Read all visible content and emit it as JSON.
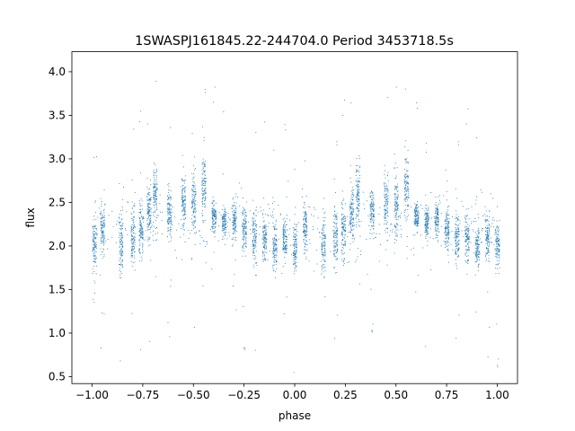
{
  "chart_data": {
    "type": "scatter",
    "title": "1SWASPJ161845.22-244704.0 Period 3453718.5s",
    "xlabel": "phase",
    "ylabel": "flux",
    "xlim": [
      -1.1,
      1.1
    ],
    "ylim": [
      0.42,
      4.23
    ],
    "xticks": [
      -1.0,
      -0.75,
      -0.5,
      -0.25,
      0.0,
      0.25,
      0.5,
      0.75,
      1.0
    ],
    "xtick_labels": [
      "−1.00",
      "−0.75",
      "−0.50",
      "−0.25",
      "0.00",
      "0.25",
      "0.50",
      "0.75",
      "1.00"
    ],
    "yticks": [
      0.5,
      1.0,
      1.5,
      2.0,
      2.5,
      3.0,
      3.5,
      4.0
    ],
    "ytick_labels": [
      "0.5",
      "1.0",
      "1.5",
      "2.0",
      "2.5",
      "3.0",
      "3.5",
      "4.0"
    ],
    "grid": false,
    "legend": "none",
    "marker_color": "#1f77b4",
    "phase_range": [
      -1.0,
      1.0
    ],
    "period_note": "phase-folded light curve repeated over two cycles",
    "clusters": [
      {
        "x": -0.99,
        "y_center": 2.0,
        "y_spread": 0.35
      },
      {
        "x": -0.95,
        "y_center": 2.2,
        "y_spread": 0.35
      },
      {
        "x": -0.86,
        "y_center": 2.0,
        "y_spread": 0.45
      },
      {
        "x": -0.8,
        "y_center": 2.1,
        "y_spread": 0.4
      },
      {
        "x": -0.76,
        "y_center": 2.2,
        "y_spread": 0.4
      },
      {
        "x": -0.72,
        "y_center": 2.4,
        "y_spread": 0.4
      },
      {
        "x": -0.69,
        "y_center": 2.6,
        "y_spread": 0.4
      },
      {
        "x": -0.62,
        "y_center": 2.4,
        "y_spread": 0.3
      },
      {
        "x": -0.55,
        "y_center": 2.5,
        "y_spread": 0.35
      },
      {
        "x": -0.5,
        "y_center": 2.5,
        "y_spread": 0.45
      },
      {
        "x": -0.45,
        "y_center": 2.7,
        "y_spread": 0.4
      },
      {
        "x": -0.4,
        "y_center": 2.35,
        "y_spread": 0.2
      },
      {
        "x": -0.35,
        "y_center": 2.3,
        "y_spread": 0.2
      },
      {
        "x": -0.3,
        "y_center": 2.3,
        "y_spread": 0.25
      },
      {
        "x": -0.25,
        "y_center": 2.2,
        "y_spread": 0.3
      },
      {
        "x": -0.2,
        "y_center": 2.1,
        "y_spread": 0.35
      },
      {
        "x": -0.15,
        "y_center": 2.1,
        "y_spread": 0.3
      },
      {
        "x": -0.1,
        "y_center": 2.0,
        "y_spread": 0.3
      },
      {
        "x": -0.05,
        "y_center": 2.1,
        "y_spread": 0.3
      },
      {
        "x": 0.0,
        "y_center": 2.0,
        "y_spread": 0.3
      },
      {
        "x": 0.05,
        "y_center": 2.2,
        "y_spread": 0.35
      },
      {
        "x": 0.14,
        "y_center": 2.0,
        "y_spread": 0.45
      },
      {
        "x": 0.2,
        "y_center": 2.1,
        "y_spread": 0.4
      },
      {
        "x": 0.24,
        "y_center": 2.2,
        "y_spread": 0.4
      },
      {
        "x": 0.28,
        "y_center": 2.4,
        "y_spread": 0.4
      },
      {
        "x": 0.31,
        "y_center": 2.6,
        "y_spread": 0.4
      },
      {
        "x": 0.38,
        "y_center": 2.4,
        "y_spread": 0.3
      },
      {
        "x": 0.45,
        "y_center": 2.5,
        "y_spread": 0.35
      },
      {
        "x": 0.5,
        "y_center": 2.5,
        "y_spread": 0.45
      },
      {
        "x": 0.55,
        "y_center": 2.7,
        "y_spread": 0.4
      },
      {
        "x": 0.6,
        "y_center": 2.35,
        "y_spread": 0.2
      },
      {
        "x": 0.65,
        "y_center": 2.3,
        "y_spread": 0.2
      },
      {
        "x": 0.7,
        "y_center": 2.3,
        "y_spread": 0.25
      },
      {
        "x": 0.75,
        "y_center": 2.2,
        "y_spread": 0.3
      },
      {
        "x": 0.8,
        "y_center": 2.1,
        "y_spread": 0.35
      },
      {
        "x": 0.85,
        "y_center": 2.1,
        "y_spread": 0.3
      },
      {
        "x": 0.9,
        "y_center": 2.0,
        "y_spread": 0.3
      },
      {
        "x": 0.95,
        "y_center": 2.1,
        "y_spread": 0.3
      },
      {
        "x": 1.0,
        "y_center": 2.0,
        "y_spread": 0.3
      }
    ]
  }
}
